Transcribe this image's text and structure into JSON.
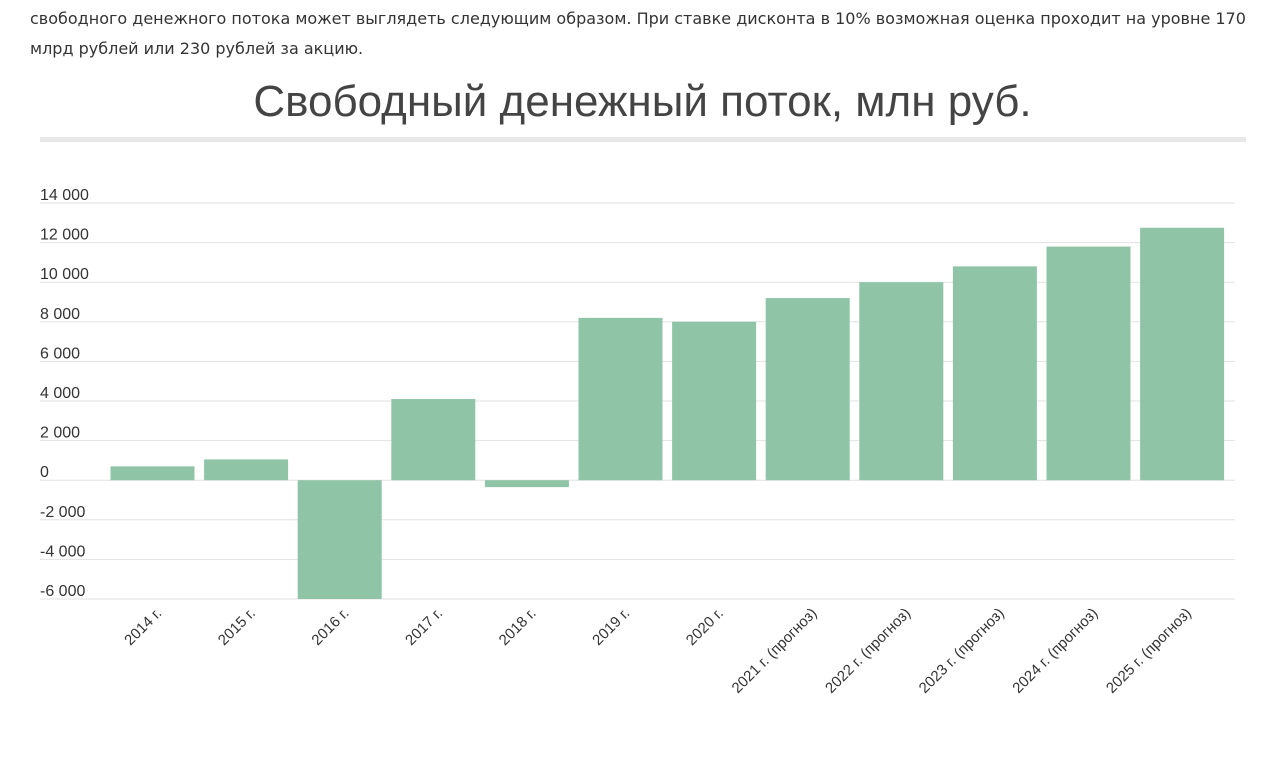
{
  "intro_text": "свободного денежного потока может выглядеть следующим образом. При ставке дисконта в 10% возможная оценка проходит на уровне 170 млрд рублей или 230 рублей за акцию.",
  "colors": {
    "bar": "#8fc4a7",
    "grid": "#e2e2e2",
    "axis_text": "#333333",
    "title": "#444444"
  },
  "chart_data": {
    "type": "bar",
    "title": "Свободный денежный поток, млн руб.",
    "xlabel": "",
    "ylabel": "",
    "ylim": [
      -6000,
      14000
    ],
    "yticks": [
      14000,
      12000,
      10000,
      8000,
      6000,
      4000,
      2000,
      0,
      -2000,
      -4000,
      -6000
    ],
    "ytick_labels": [
      "14 000",
      "12 000",
      "10 000",
      "8 000",
      "6 000",
      "4 000",
      "2 000",
      "0",
      "-2 000",
      "-4 000",
      "-6 000"
    ],
    "grid": true,
    "categories": [
      "2014 г.",
      "2015 г.",
      "2016 г.",
      "2017 г.",
      "2018 г.",
      "2019 г.",
      "2020 г.",
      "2021 г. (прогноз)",
      "2022 г. (прогноз)",
      "2023 г. (прогноз)",
      "2024 г. (прогноз)",
      "2025 г. (прогноз)"
    ],
    "values": [
      700,
      1050,
      -6000,
      4100,
      -350,
      8200,
      8000,
      9200,
      10000,
      10800,
      11800,
      12750
    ]
  }
}
